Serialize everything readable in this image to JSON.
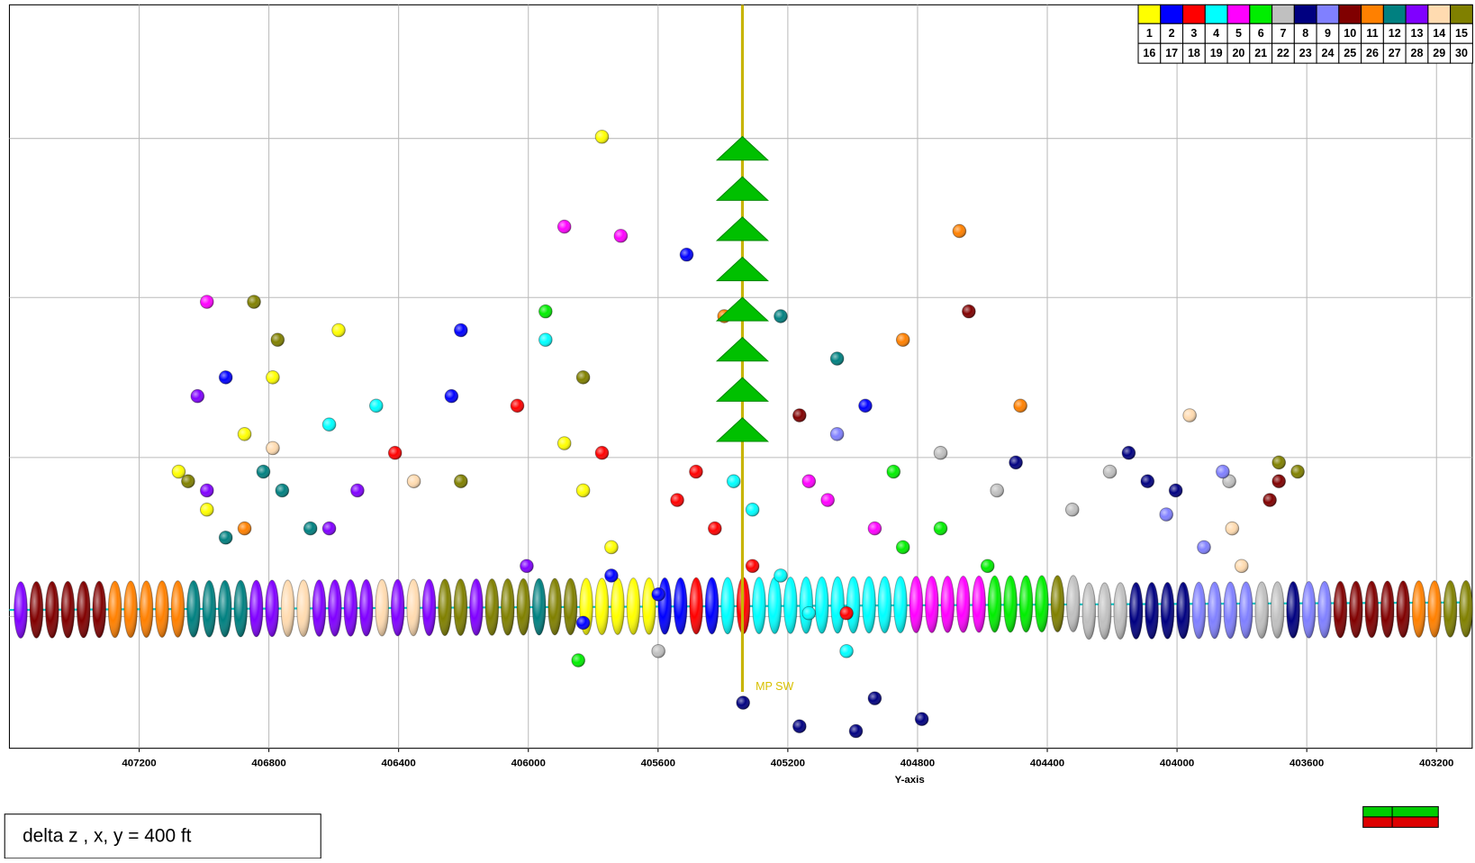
{
  "chart_data": {
    "type": "scatter",
    "x_label": "Y-axis",
    "note": "delta z , x, y =  400 ft",
    "xlim": [
      407600,
      403090
    ],
    "xticks": [
      407200,
      406800,
      406400,
      406000,
      405600,
      405200,
      404800,
      404400,
      404000,
      403600,
      403200
    ],
    "ylim": [
      0,
      1860
    ],
    "grid": true,
    "well": {
      "label": "MP SW",
      "x": 405340
    },
    "legend": {
      "top": [
        "1",
        "2",
        "3",
        "4",
        "5",
        "6",
        "7",
        "8",
        "9",
        "10",
        "11",
        "12",
        "13",
        "14",
        "15"
      ],
      "bottom": [
        "16",
        "17",
        "18",
        "19",
        "20",
        "21",
        "22",
        "23",
        "24",
        "25",
        "26",
        "27",
        "28",
        "29",
        "30"
      ]
    },
    "series": [
      {
        "color": "#ffff00",
        "x": [
          407078,
          406991,
          406875,
          406788,
          405831,
          405744,
          405889,
          406585,
          405773
        ],
        "y": [
          1168,
          1263,
          1074,
          932,
          1215,
          1357,
          1097,
          814,
          330
        ]
      },
      {
        "color": "#0000ff",
        "x": [
          406933,
          406237,
          405599,
          405744,
          405831,
          406208,
          405512,
          404961
        ],
        "y": [
          932,
          979,
          1475,
          1428,
          1546,
          814,
          625,
          1003
        ]
      },
      {
        "color": "#ff0000",
        "x": [
          405541,
          405425,
          405483,
          405309,
          406411,
          405773,
          405019,
          406034
        ],
        "y": [
          1239,
          1310,
          1168,
          1404,
          1121,
          1121,
          1522,
          1003
        ]
      },
      {
        "color": "#00ffff",
        "x": [
          405309,
          405222,
          405135,
          406469,
          406614,
          405947,
          405367,
          405019
        ],
        "y": [
          1263,
          1428,
          1522,
          1003,
          1050,
          838,
          1192,
          1617
        ]
      },
      {
        "color": "#ff00ff",
        "x": [
          405889,
          405715,
          405077,
          404932,
          406991,
          405135
        ],
        "y": [
          555,
          578,
          1239,
          1310,
          743,
          1192
        ]
      },
      {
        "color": "#00ee00",
        "x": [
          404729,
          404845,
          404584,
          405846,
          405947,
          404874
        ],
        "y": [
          1310,
          1357,
          1404,
          1640,
          767,
          1168
        ]
      },
      {
        "color": "#c0c0c0",
        "x": [
          404555,
          404207,
          404323,
          404729,
          403839,
          405599
        ],
        "y": [
          1215,
          1168,
          1263,
          1121,
          1192,
          1617
        ]
      },
      {
        "color": "#000080",
        "x": [
          404497,
          404091,
          404004,
          405164,
          404990,
          405338,
          404932,
          404787,
          404149
        ],
        "y": [
          1145,
          1192,
          1215,
          1805,
          1817,
          1746,
          1735,
          1787,
          1121
        ]
      },
      {
        "color": "#8080ff",
        "x": [
          404033,
          403859,
          403917,
          405048
        ],
        "y": [
          1275,
          1168,
          1357,
          1074
        ]
      },
      {
        "color": "#800000",
        "x": [
          403714,
          404642,
          405164,
          403686
        ],
        "y": [
          1239,
          767,
          1027,
          1192
        ]
      },
      {
        "color": "#ff8000",
        "x": [
          404483,
          404845,
          404671,
          406875,
          405396
        ],
        "y": [
          1003,
          838,
          566,
          1310,
          779
        ]
      },
      {
        "color": "#008080",
        "x": [
          406759,
          406672,
          406817,
          405048,
          405222,
          406933
        ],
        "y": [
          1215,
          1310,
          1168,
          885,
          779,
          1333
        ]
      },
      {
        "color": "#8000ff",
        "x": [
          406614,
          406527,
          406005,
          407020,
          406991
        ],
        "y": [
          1310,
          1215,
          1404,
          979,
          1215
        ]
      },
      {
        "color": "#ffdbb0",
        "x": [
          406353,
          403830,
          403801,
          403961,
          406788
        ],
        "y": [
          1192,
          1310,
          1404,
          1027,
          1109
        ]
      },
      {
        "color": "#808000",
        "x": [
          406846,
          406773,
          406208,
          403686,
          403628,
          407049,
          405831
        ],
        "y": [
          743,
          838,
          1192,
          1145,
          1168,
          1192,
          932
        ]
      }
    ]
  }
}
